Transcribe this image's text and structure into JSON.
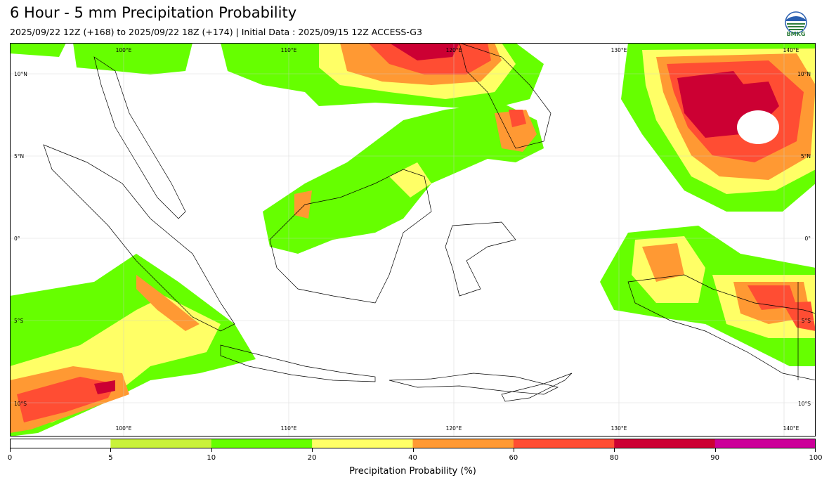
{
  "title": "6 Hour - 5 mm Precipitation Probability",
  "subtitle": "2025/09/22 12Z (+168) to 2025/09/22 18Z (+174) | Initial Data : 2025/09/15 12Z ACCESS-G3",
  "logo_text": "BMKG",
  "map": {
    "lon_top": [
      "100°E",
      "110°E",
      "120°E",
      "130°E",
      "140°E"
    ],
    "lon_bottom": [
      "100°E",
      "110°E",
      "120°E",
      "130°E",
      "140°E"
    ],
    "lat_left": [
      "10°N",
      "5°N",
      "0°",
      "5°S",
      "10°S"
    ],
    "lat_right": [
      "10°N",
      "5°N",
      "0°",
      "5°S",
      "10°S"
    ]
  },
  "colorbar": {
    "label": "Precipitation Probability (%)",
    "ticks": [
      "0",
      "5",
      "10",
      "20",
      "40",
      "60",
      "80",
      "90",
      "100"
    ],
    "colors": [
      "#ffffff",
      "#c9f23a",
      "#66ff00",
      "#ffff66",
      "#ff9933",
      "#ff4d33",
      "#cc0033",
      "#cc0099"
    ]
  }
}
